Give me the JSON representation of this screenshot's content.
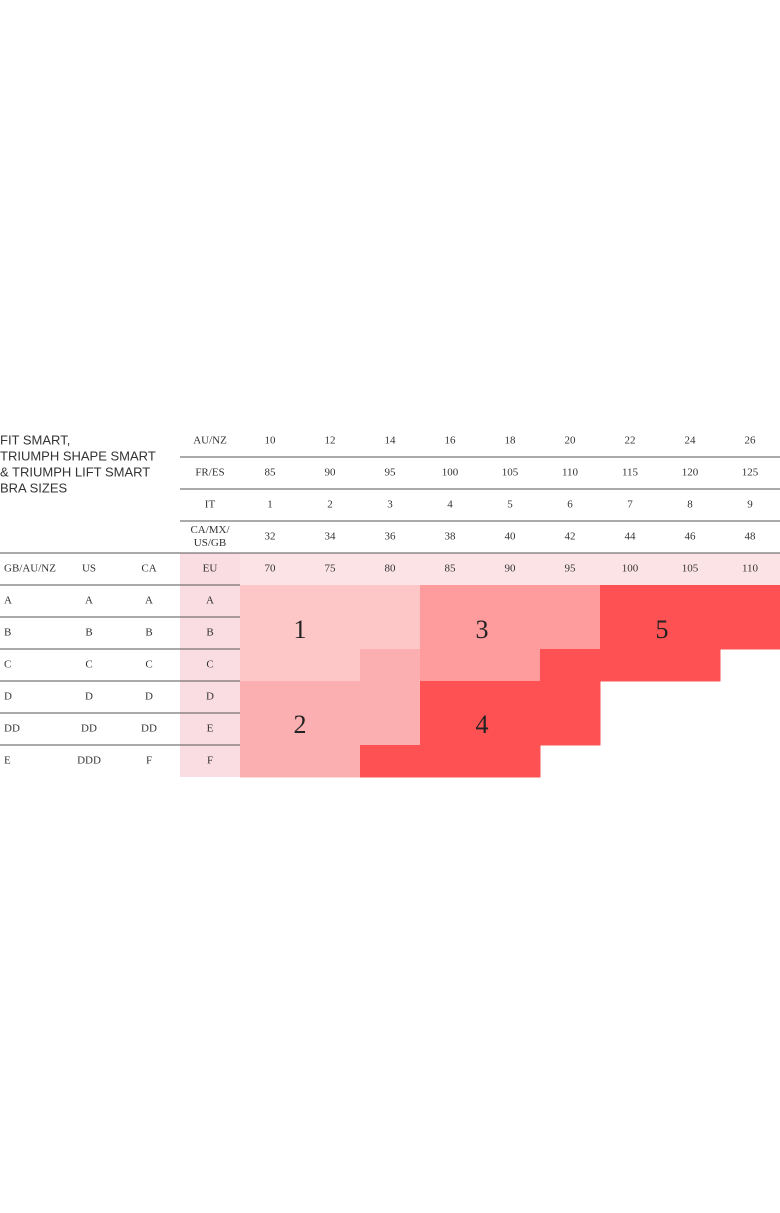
{
  "title": [
    "FIT SMART,",
    "TRIUMPH SHAPE SMART",
    "& TRIUMPH LIFT SMART",
    "BRA SIZES"
  ],
  "header_rows": [
    {
      "label": [
        "AU/NZ"
      ],
      "values": [
        10,
        12,
        14,
        16,
        18,
        20,
        22,
        24,
        26
      ]
    },
    {
      "label": [
        "FR/ES"
      ],
      "values": [
        85,
        90,
        95,
        100,
        105,
        110,
        115,
        120,
        125
      ]
    },
    {
      "label": [
        "IT"
      ],
      "values": [
        1,
        2,
        3,
        4,
        5,
        6,
        7,
        8,
        9
      ]
    },
    {
      "label": [
        "CA/MX/",
        "US/GB"
      ],
      "values": [
        32,
        34,
        36,
        38,
        40,
        42,
        44,
        46,
        48
      ]
    }
  ],
  "band_row": {
    "labels": [
      "GB/AU/NZ",
      "US",
      "CA",
      "EU"
    ],
    "values": [
      70,
      75,
      80,
      85,
      90,
      95,
      100,
      105,
      110
    ]
  },
  "cup_rows": [
    [
      "A",
      "A",
      "A",
      "A"
    ],
    [
      "B",
      "B",
      "B",
      "B"
    ],
    [
      "C",
      "C",
      "C",
      "C"
    ],
    [
      "D",
      "D",
      "D",
      "D"
    ],
    [
      "DD",
      "DD",
      "DD",
      "E"
    ],
    [
      "E",
      "DDD",
      "F",
      "F"
    ]
  ],
  "zones": [
    "1",
    "2",
    "3",
    "4",
    "5"
  ]
}
